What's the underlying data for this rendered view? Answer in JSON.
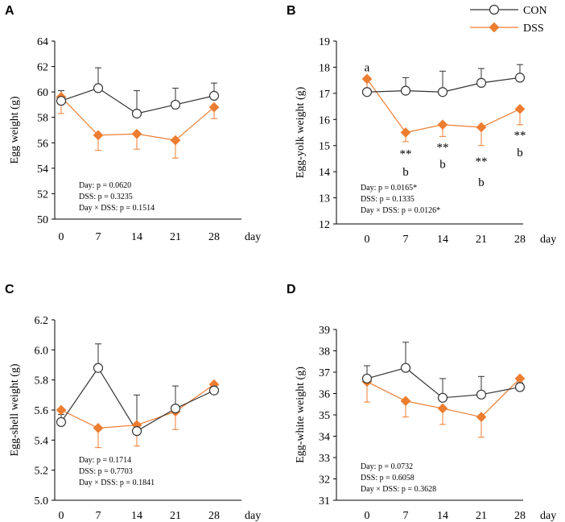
{
  "colors": {
    "con": "#333333",
    "dss": "#ED7D31"
  },
  "legend": {
    "con": "CON",
    "dss": "DSS"
  },
  "chart_data": [
    {
      "type": "line",
      "panel": "A",
      "ylabel": "Egg weight (g)",
      "xlabel": "day",
      "categories": [
        "0",
        "7",
        "14",
        "21",
        "28"
      ],
      "ylim": [
        50,
        64
      ],
      "yticks": [
        "50",
        "52",
        "54",
        "56",
        "58",
        "60",
        "62",
        "64"
      ],
      "series": [
        {
          "name": "CON",
          "values": [
            59.3,
            60.3,
            58.3,
            59.0,
            59.7
          ],
          "errors": [
            0.8,
            1.6,
            1.8,
            1.3,
            1.0
          ]
        },
        {
          "name": "DSS",
          "values": [
            59.6,
            56.6,
            56.7,
            56.2,
            58.8
          ],
          "errors": [
            1.3,
            1.2,
            1.2,
            1.4,
            0.9
          ]
        }
      ],
      "stats": [
        "Day: p = 0.0620",
        "DSS: p = 0.3235",
        "Day × DSS: p = 0.1514"
      ],
      "annotations": []
    },
    {
      "type": "line",
      "panel": "B",
      "ylabel": "Egg-yolk weight (g)",
      "xlabel": "day",
      "categories": [
        "0",
        "7",
        "14",
        "21",
        "28"
      ],
      "ylim": [
        12,
        19
      ],
      "yticks": [
        "12",
        "13",
        "14",
        "15",
        "16",
        "17",
        "18",
        "19"
      ],
      "series": [
        {
          "name": "CON",
          "values": [
            17.05,
            17.1,
            17.05,
            17.4,
            17.6
          ],
          "errors": [
            0.1,
            0.5,
            0.8,
            0.55,
            0.5
          ]
        },
        {
          "name": "DSS",
          "values": [
            17.55,
            15.5,
            15.8,
            15.7,
            16.4
          ],
          "errors": [
            0.6,
            0.35,
            0.45,
            0.7,
            0.6
          ]
        }
      ],
      "stats": [
        "Day: p = 0.0165*",
        "DSS: p = 0.1335",
        "Day × DSS: p = 0.0126*"
      ],
      "annotations": [
        {
          "x": 0,
          "y": 18.0,
          "text": "a"
        },
        {
          "x": 1,
          "y": 14.7,
          "text": "**"
        },
        {
          "x": 1,
          "y": 14.0,
          "text": "b"
        },
        {
          "x": 2,
          "y": 14.95,
          "text": "**"
        },
        {
          "x": 2,
          "y": 14.3,
          "text": "b"
        },
        {
          "x": 3,
          "y": 14.4,
          "text": "**"
        },
        {
          "x": 3,
          "y": 13.6,
          "text": "b"
        },
        {
          "x": 4,
          "y": 15.4,
          "text": "**"
        },
        {
          "x": 4,
          "y": 14.75,
          "text": "b"
        }
      ]
    },
    {
      "type": "line",
      "panel": "C",
      "ylabel": "Egg-shell weight (g)",
      "xlabel": "day",
      "categories": [
        "0",
        "7",
        "14",
        "21",
        "28"
      ],
      "ylim": [
        5.0,
        6.2
      ],
      "yticks": [
        "5.0",
        "5.2",
        "5.4",
        "5.6",
        "5.8",
        "6.0",
        "6.2"
      ],
      "series": [
        {
          "name": "CON",
          "values": [
            5.52,
            5.88,
            5.46,
            5.61,
            5.73
          ],
          "errors": [
            0.05,
            0.16,
            0.24,
            0.15,
            0.03
          ]
        },
        {
          "name": "DSS",
          "values": [
            5.6,
            5.48,
            5.5,
            5.59,
            5.77
          ],
          "errors": [
            0.08,
            0.13,
            0.14,
            0.12,
            0.06
          ]
        }
      ],
      "stats": [
        "Day: p = 0.1714",
        "DSS: p = 0.7703",
        "Day × DSS: p = 0.1841"
      ],
      "annotations": []
    },
    {
      "type": "line",
      "panel": "D",
      "ylabel": "Egg-white weight (g)",
      "xlabel": "day",
      "categories": [
        "0",
        "7",
        "14",
        "21",
        "28"
      ],
      "ylim": [
        31,
        39
      ],
      "yticks": [
        "31",
        "32",
        "33",
        "34",
        "35",
        "36",
        "37",
        "38",
        "39"
      ],
      "series": [
        {
          "name": "CON",
          "values": [
            36.7,
            37.2,
            35.8,
            35.95,
            36.3
          ],
          "errors": [
            0.6,
            1.2,
            0.9,
            0.85,
            0.2
          ]
        },
        {
          "name": "DSS",
          "values": [
            36.55,
            35.65,
            35.3,
            34.9,
            36.7
          ],
          "errors": [
            0.95,
            0.75,
            0.75,
            0.95,
            0.3
          ]
        }
      ],
      "stats": [
        "Day: p = 0.0732",
        "DSS: p = 0.6058",
        "Day × DSS: p = 0.3628"
      ],
      "annotations": []
    }
  ]
}
